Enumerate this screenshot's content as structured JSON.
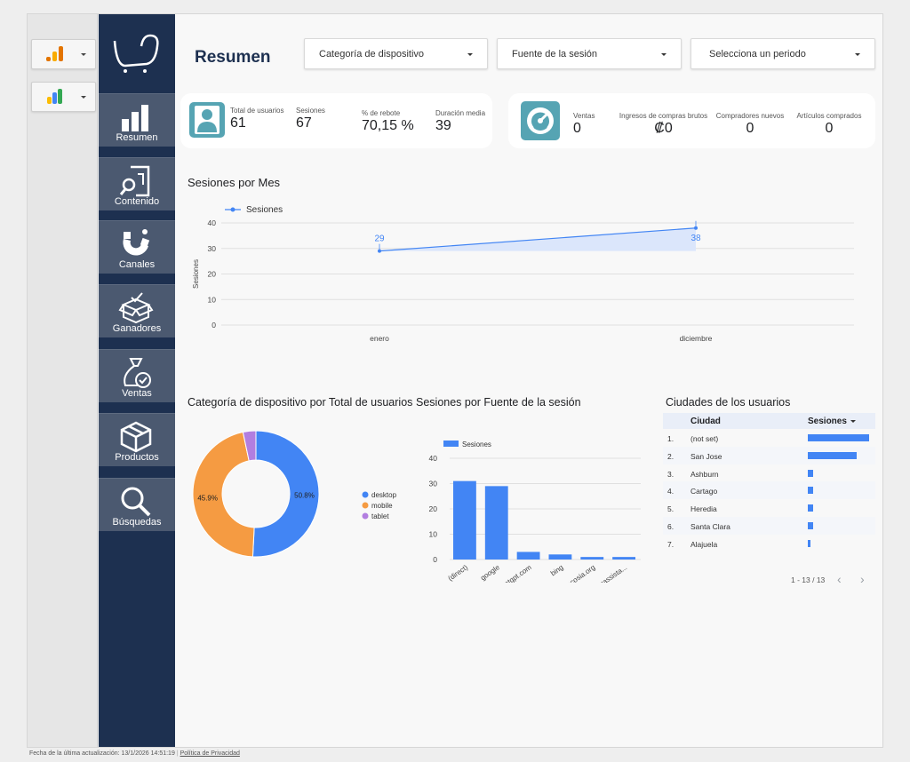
{
  "title": "Resumen",
  "filters": [
    {
      "label": "Categoría de dispositivo"
    },
    {
      "label": "Fuente de la sesión"
    },
    {
      "label": "Selecciona un periodo"
    }
  ],
  "nav": [
    {
      "label": "Resumen",
      "icon": "bar-chart-icon"
    },
    {
      "label": "Contenido",
      "icon": "content-search-icon"
    },
    {
      "label": "Canales",
      "icon": "magnet-icon"
    },
    {
      "label": "Ganadores",
      "icon": "open-box-icon"
    },
    {
      "label": "Ventas",
      "icon": "money-bag-icon"
    },
    {
      "label": "Productos",
      "icon": "package-icon"
    },
    {
      "label": "Búsquedas",
      "icon": "magnifier-icon"
    }
  ],
  "kpi_users": {
    "total_users": {
      "label": "Total de usuarios",
      "value": "61"
    },
    "sessions": {
      "label": "Sesiones",
      "value": "67"
    },
    "bounce": {
      "label": "% de rebote",
      "value": "70,15 %"
    },
    "duration": {
      "label": "Duración media",
      "value": "39"
    }
  },
  "kpi_sales": {
    "sales": {
      "label": "Ventas",
      "value": "0"
    },
    "revenue": {
      "label": "Ingresos de compras brutos",
      "value": "₡0"
    },
    "buyers": {
      "label": "Compradores nuevos",
      "value": "0"
    },
    "items": {
      "label": "Artículos comprados",
      "value": "0"
    }
  },
  "sessions_chart": {
    "title": "Sesiones por Mes",
    "legend": "Sesiones",
    "ylabel": "Sesiones"
  },
  "device_chart": {
    "title": "Categoría de dispositivo por Total de usuarios"
  },
  "source_chart": {
    "title": "Sesiones por Fuente de la sesión",
    "legend": "Sesiones"
  },
  "cities": {
    "title": "Ciudades de los usuarios",
    "col_city": "Ciudad",
    "col_sessions": "Sesiones",
    "rows": [
      {
        "n": "1.",
        "city": "(not set)",
        "sessions": 24
      },
      {
        "n": "2.",
        "city": "San Jose",
        "sessions": 19
      },
      {
        "n": "3.",
        "city": "Ashburn",
        "sessions": 2
      },
      {
        "n": "4.",
        "city": "Cartago",
        "sessions": 2
      },
      {
        "n": "5.",
        "city": "Heredia",
        "sessions": 2
      },
      {
        "n": "6.",
        "city": "Santa Clara",
        "sessions": 2
      },
      {
        "n": "7.",
        "city": "Alajuela",
        "sessions": 1
      }
    ],
    "pager": "1 - 13 / 13"
  },
  "footer": {
    "updated": "Fecha de la última actualización: 13/1/2026 14:51:19",
    "privacy": "Política de Privacidad"
  },
  "chart_data": [
    {
      "type": "line",
      "title": "Sesiones por Mes",
      "categories": [
        "enero",
        "diciembre"
      ],
      "series": [
        {
          "name": "Sesiones",
          "values": [
            29,
            38
          ]
        }
      ],
      "ylabel": "Sesiones",
      "ylim": [
        0,
        40
      ],
      "yticks": [
        0,
        10,
        20,
        30,
        40
      ],
      "grid": true,
      "legend": "top-left"
    },
    {
      "type": "pie",
      "title": "Categoría de dispositivo por Total de usuarios",
      "categories": [
        "desktop",
        "mobile",
        "tablet"
      ],
      "values": [
        50.8,
        45.9,
        3.3
      ],
      "labels": [
        "50.8%",
        "45.9%",
        ""
      ],
      "colors": [
        "#4285f4",
        "#f59b42",
        "#b27ee0"
      ],
      "legend": "right"
    },
    {
      "type": "bar",
      "title": "Sesiones por Fuente de la sesión",
      "categories": [
        "(direct)",
        "google",
        "chatgpt.com",
        "bing",
        "ecosia.org",
        "lagassista..."
      ],
      "series": [
        {
          "name": "Sesiones",
          "values": [
            31,
            29,
            3,
            2,
            1,
            1
          ]
        }
      ],
      "ylim": [
        0,
        40
      ],
      "yticks": [
        0,
        10,
        20,
        30,
        40
      ],
      "grid": true,
      "legend": "top-left"
    }
  ]
}
